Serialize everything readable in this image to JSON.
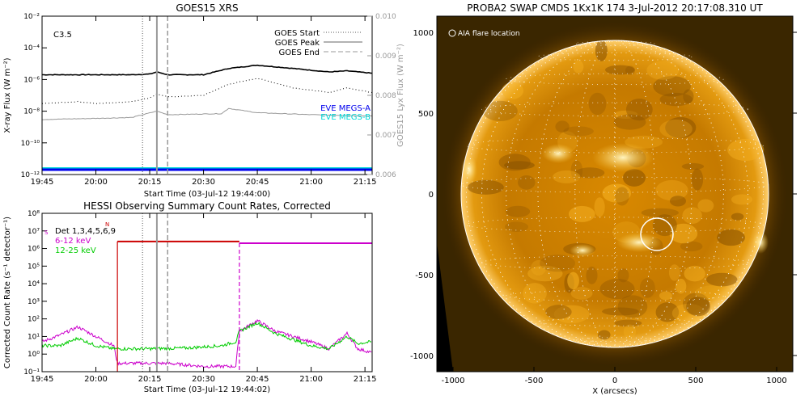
{
  "chart_data": [
    {
      "type": "line",
      "title": "GOES15 XRS",
      "xlabel": "Start Time (03-Jul-12 19:44:00)",
      "ylabel": "X-ray Flux (W m⁻²)",
      "y2label": "GOES15 Lyx Flux (W m⁻²)",
      "annotation": "C3.5",
      "yscale": "log",
      "ylim": [
        1e-12,
        0.01
      ],
      "xlim": [
        "19:45",
        "21:17"
      ],
      "x_ticks": [
        "19:45",
        "20:00",
        "20:15",
        "20:30",
        "20:45",
        "21:00",
        "21:15"
      ],
      "y_ticks": [
        "10⁻¹²",
        "10⁻¹⁰",
        "10⁻⁸",
        "10⁻⁶",
        "10⁻⁴",
        "10⁻²"
      ],
      "y2_ticks": [
        "0.006",
        "0.007",
        "0.008",
        "0.009",
        "0.010"
      ],
      "y2lim": [
        0.006,
        0.01
      ],
      "legend": [
        {
          "label": "GOES Start",
          "style": "dotted",
          "color": "#555555"
        },
        {
          "label": "GOES Peak",
          "style": "solid",
          "color": "#999999"
        },
        {
          "label": "GOES End",
          "style": "dashed",
          "color": "#999999"
        }
      ],
      "legend_placement": "top-right",
      "markers": {
        "start": "20:13",
        "peak": "20:17",
        "end": "20:20"
      },
      "series": [
        {
          "style": "solid",
          "color": "#000000",
          "x": [
            "19:45",
            "20:00",
            "20:10",
            "20:15",
            "20:17",
            "20:20",
            "20:30",
            "20:37",
            "20:45",
            "20:55",
            "21:05",
            "21:10",
            "21:17"
          ],
          "values": [
            2e-06,
            2e-06,
            2e-06,
            2.2e-06,
            3e-06,
            2e-06,
            2e-06,
            5e-06,
            8e-06,
            5e-06,
            3e-06,
            3.5e-06,
            2.5e-06
          ]
        },
        {
          "style": "dotted",
          "color": "#000000",
          "x": [
            "19:45",
            "19:55",
            "20:00",
            "20:10",
            "20:15",
            "20:17",
            "20:20",
            "20:30",
            "20:37",
            "20:45",
            "20:55",
            "21:05",
            "21:10",
            "21:17"
          ],
          "values": [
            3e-08,
            4e-08,
            3e-08,
            4e-08,
            7e-08,
            1.2e-07,
            8e-08,
            1e-07,
            5e-07,
            1.2e-06,
            3e-07,
            1.5e-07,
            3e-07,
            1.5e-07
          ]
        },
        {
          "style": "solid",
          "color": "#999999",
          "x": [
            "19:45",
            "20:00",
            "20:10",
            "20:17",
            "20:20",
            "20:35",
            "20:37",
            "20:45",
            "21:00",
            "21:17"
          ],
          "values": [
            3e-09,
            3.5e-09,
            4e-09,
            1e-08,
            6e-09,
            7e-09,
            1.5e-08,
            8e-09,
            6e-09,
            5e-09
          ]
        }
      ],
      "eve_legend": [
        {
          "label": "EVE MEGS-A",
          "color": "#0000ee"
        },
        {
          "label": "EVE MEGS-B",
          "color": "#00d8d8"
        }
      ]
    },
    {
      "type": "line",
      "title": "HESSI Observing Summary Count Rates, Corrected",
      "xlabel": "Start Time (03-Jul-12 19:44:02)",
      "ylabel": "Corrected Count Rate (s⁻¹ detector⁻¹)",
      "yscale": "log",
      "ylim": [
        0.1,
        100000000
      ],
      "xlim": [
        "19:45",
        "21:17"
      ],
      "x_ticks": [
        "19:45",
        "20:00",
        "20:15",
        "20:30",
        "20:45",
        "21:00",
        "21:15"
      ],
      "y_ticks": [
        "10⁻¹",
        "10⁰",
        "10¹",
        "10²",
        "10³",
        "10⁴",
        "10⁵",
        "10⁶",
        "10⁷",
        "10⁸"
      ],
      "legend": [
        {
          "label": "Det 1,3,4,5,6,9",
          "color": "#000000"
        },
        {
          "label": "6-12 keV",
          "color": "#cc00cc"
        },
        {
          "label": "12-25 keV",
          "color": "#00cc00"
        }
      ],
      "legend_placement": "top-left",
      "flag_labels": {
        "night": "N",
        "saa": "S"
      },
      "markers": {
        "start": "20:13",
        "peak": "20:17",
        "end": "20:20",
        "gap": "20:40"
      },
      "series": [
        {
          "name": "6-12 keV",
          "color": "#cc00cc",
          "x": [
            "19:45",
            "19:50",
            "19:55",
            "20:00",
            "20:05",
            "20:06",
            "20:20",
            "20:30",
            "20:39",
            "20:40",
            "20:45",
            "20:50",
            "21:00",
            "21:05",
            "21:10",
            "21:13",
            "21:17"
          ],
          "values": [
            5,
            12,
            35,
            10,
            3,
            0.3,
            0.3,
            0.2,
            0.2,
            20,
            80,
            20,
            5,
            2,
            15,
            2,
            1.2
          ]
        },
        {
          "name": "12-25 keV",
          "color": "#00cc00",
          "x": [
            "19:45",
            "19:50",
            "19:55",
            "20:00",
            "20:05",
            "20:15",
            "20:25",
            "20:35",
            "20:39",
            "20:40",
            "20:45",
            "20:50",
            "21:00",
            "21:05",
            "21:10",
            "21:13",
            "21:17"
          ],
          "values": [
            3,
            3,
            8,
            3,
            2,
            2,
            2.2,
            3,
            5,
            20,
            60,
            15,
            3,
            2,
            10,
            4,
            5
          ]
        }
      ],
      "rate_flags": [
        {
          "color": "#cc0000",
          "x": [
            "20:06",
            "20:40"
          ],
          "values": [
            2500000,
            2500000
          ]
        },
        {
          "color": "#cc00cc",
          "x": [
            "20:40",
            "21:17"
          ],
          "values": [
            2000000,
            2000000
          ]
        }
      ]
    },
    {
      "type": "heatmap",
      "title": "PROBA2 SWAP CMDS 1Kx1K 174   3-Jul-2012 20:17:08.310 UT",
      "xlabel": "X (arcsecs)",
      "annotation": "AIA flare location",
      "xlim": [
        -1100,
        1100
      ],
      "ylim": [
        -1100,
        1100
      ],
      "x_ticks": [
        "-1000",
        "-500",
        "0",
        "500",
        "1000"
      ],
      "y_ticks": [
        "-1000",
        "-500",
        "0",
        "500",
        "1000"
      ],
      "flare_location": {
        "x": 260,
        "y": -250
      }
    }
  ]
}
